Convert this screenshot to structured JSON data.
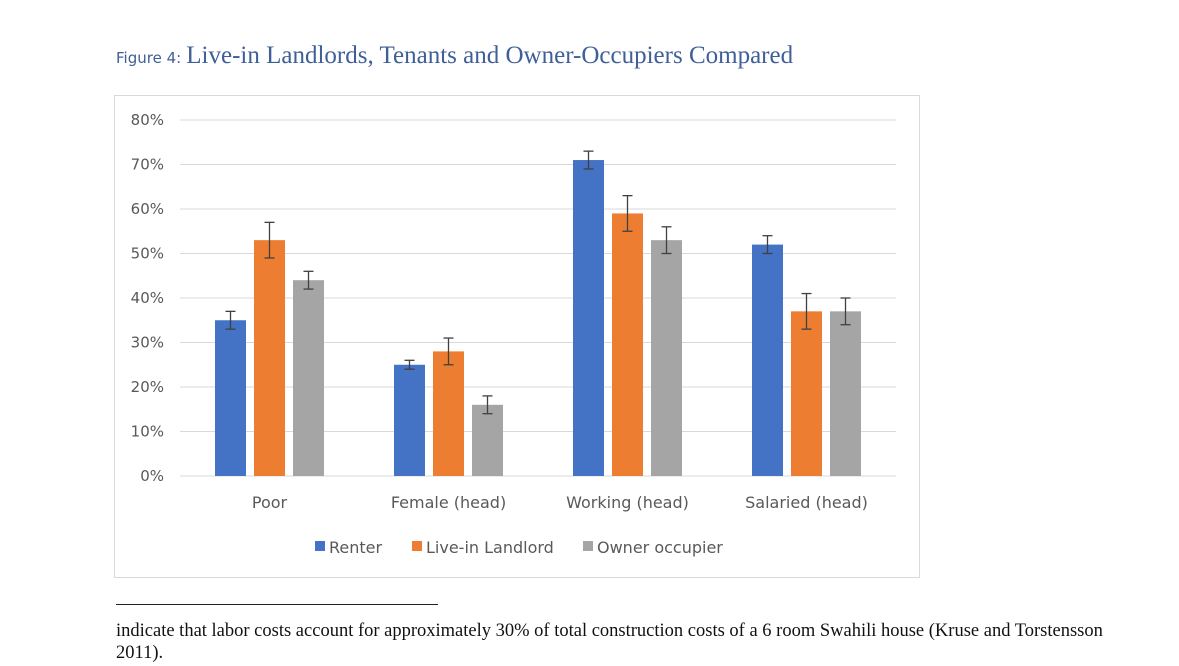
{
  "figure": {
    "label": "Figure 4:",
    "title": "Live-in Landlords, Tenants and Owner-Occupiers Compared"
  },
  "footnote": {
    "text": "indicate that labor costs account for approximately 30% of total construction costs of a 6 room Swahili house (Kruse and Torstensson 2011)."
  },
  "chart_data": {
    "type": "bar",
    "title": "Live-in Landlords, Tenants and Owner-Occupiers Compared",
    "xlabel": "",
    "ylabel": "",
    "ylim": [
      0,
      80
    ],
    "yticks": [
      0,
      10,
      20,
      30,
      40,
      50,
      60,
      70,
      80
    ],
    "ytick_labels": [
      "0%",
      "10%",
      "20%",
      "30%",
      "40%",
      "50%",
      "60%",
      "70%",
      "80%"
    ],
    "grid": true,
    "legend_position": "bottom",
    "categories": [
      "Poor",
      "Female (head)",
      "Working (head)",
      "Salaried (head)"
    ],
    "series": [
      {
        "name": "Renter",
        "color": "#4472c4",
        "values": [
          35,
          25,
          71,
          52
        ],
        "error_low": [
          33,
          24,
          69,
          50
        ],
        "error_high": [
          37,
          26,
          73,
          54
        ]
      },
      {
        "name": "Live-in Landlord",
        "color": "#ed7d31",
        "values": [
          53,
          28,
          59,
          37
        ],
        "error_low": [
          49,
          25,
          55,
          33
        ],
        "error_high": [
          57,
          31,
          63,
          41
        ]
      },
      {
        "name": "Owner occupier",
        "color": "#a5a5a5",
        "values": [
          44,
          16,
          53,
          37
        ],
        "error_low": [
          42,
          14,
          50,
          34
        ],
        "error_high": [
          46,
          18,
          56,
          40
        ]
      }
    ]
  }
}
